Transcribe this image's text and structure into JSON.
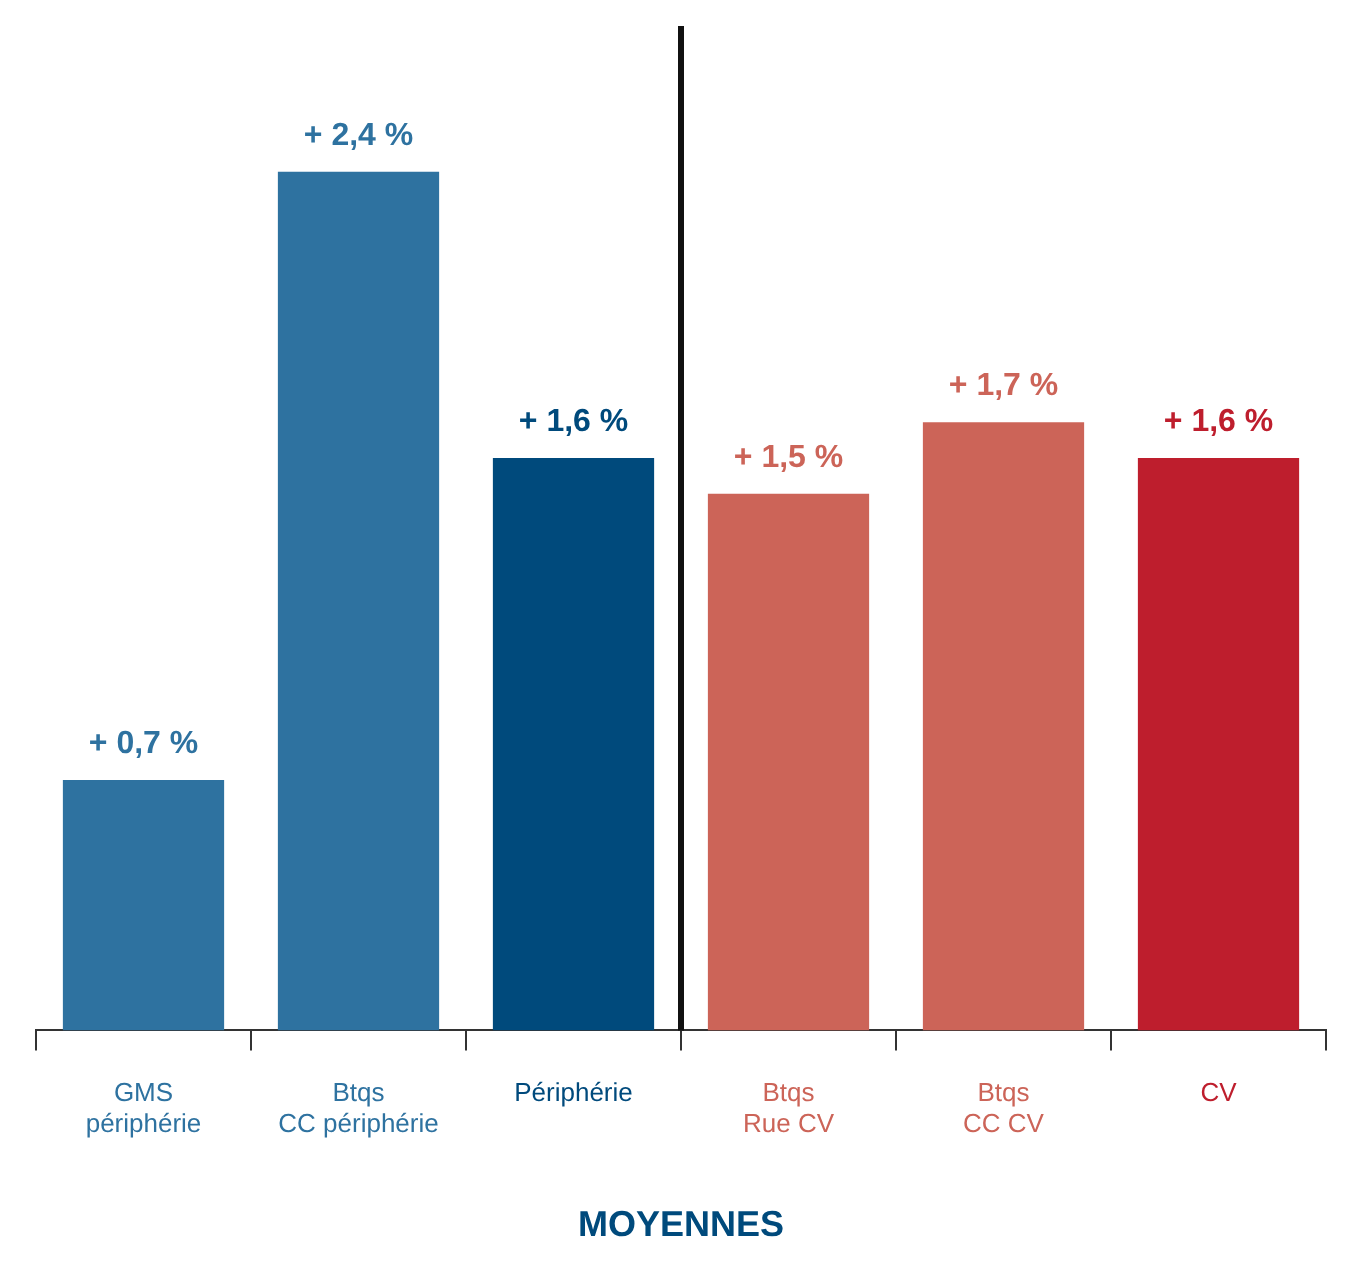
{
  "chart_data": {
    "type": "bar",
    "xlabel": "MOYENNES",
    "categories": [
      "GMS périphérie",
      "Btqs CC périphérie",
      "Périphérie",
      "Btqs Rue CV",
      "Btqs CC CV",
      "CV"
    ],
    "values": [
      0.7,
      2.4,
      1.6,
      1.5,
      1.7,
      1.6
    ],
    "value_labels": [
      "+ 0,7 %",
      "+ 2,4 %",
      "+ 1,6 %",
      "+ 1,5 %",
      "+ 1,7 %",
      "+ 1,6 %"
    ],
    "colors": [
      "#2e72a0",
      "#2e72a0",
      "#004a7c",
      "#cc6458",
      "#cc6458",
      "#be1e2d"
    ],
    "grid": false,
    "legend": false
  }
}
